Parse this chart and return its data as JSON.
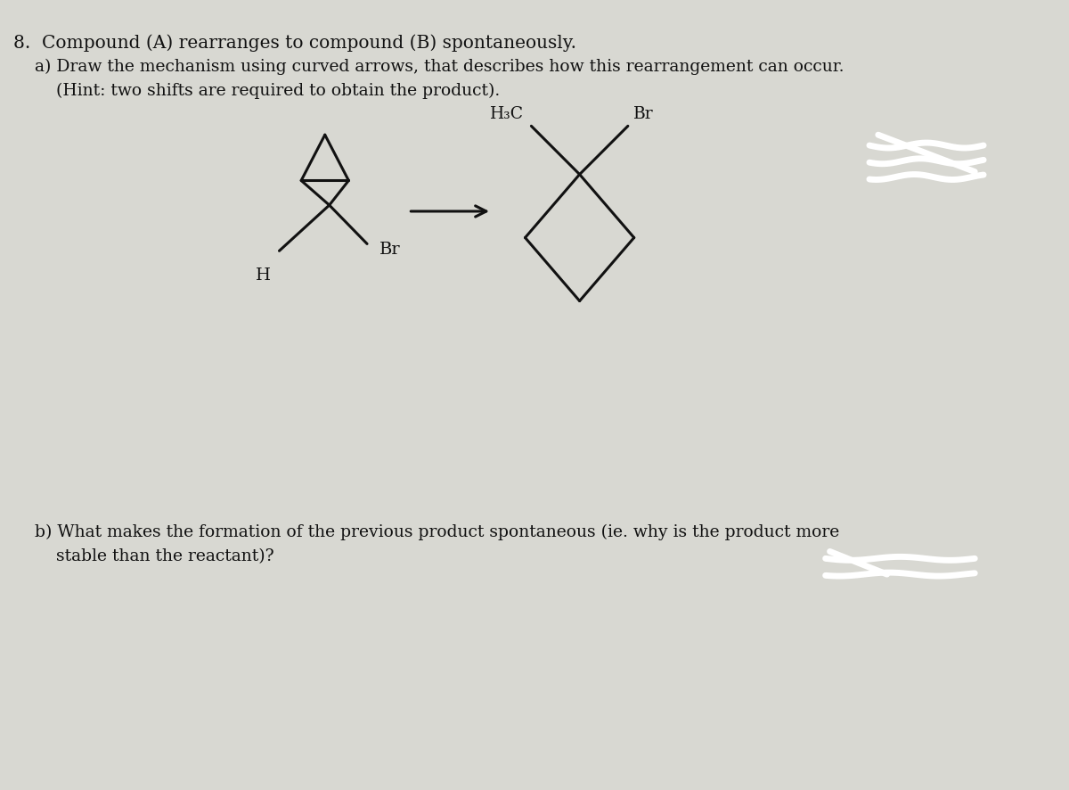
{
  "bg_color": "#d8d8d2",
  "text_color": "#111111",
  "line_color": "#111111",
  "title_text": "8.  Compound (A) rearranges to compound (B) spontaneously.",
  "subtitle_a": "    a) Draw the mechanism using curved arrows, that describes how this rearrangement can occur.",
  "subtitle_a2": "        (Hint: two shifts are required to obtain the product).",
  "part_b_line1": "    b) What makes the formation of the previous product spontaneous (ie. why is the product more",
  "part_b_line2": "        stable than the reactant)?",
  "figsize": [
    12.0,
    8.87
  ],
  "dpi": 100
}
